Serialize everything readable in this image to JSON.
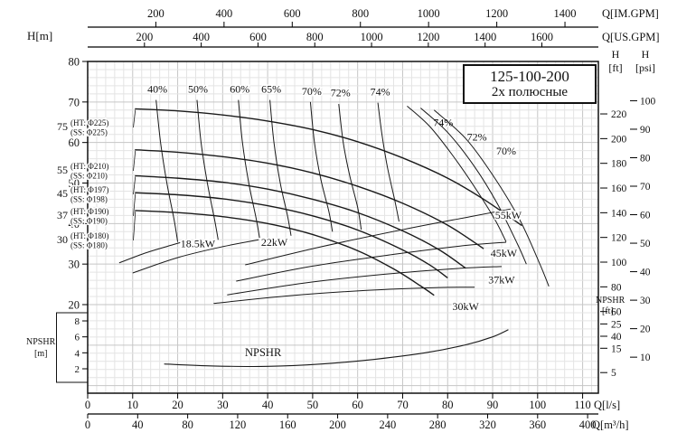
{
  "chart_data": {
    "type": "line",
    "title": "125-100-200",
    "subtitle": "2х полюсные",
    "grid": "on",
    "q_axis_range_ls": [
      0,
      113.5
    ],
    "h_axis_range_m": [
      20,
      80
    ],
    "npshr_axis_range_m": [
      2,
      8
    ],
    "axes": {
      "top_im": {
        "unit": "Q[IM.GPM]",
        "ticks": [
          200,
          400,
          600,
          800,
          1000,
          1200,
          1400
        ]
      },
      "top_us": {
        "unit": "Q[US.GPM]",
        "ticks": [
          200,
          400,
          600,
          800,
          1000,
          1200,
          1400,
          1600
        ]
      },
      "bottom_ls": {
        "unit": "Q[l/s]",
        "ticks": [
          0,
          10,
          20,
          30,
          40,
          50,
          60,
          70,
          80,
          90,
          100,
          110
        ]
      },
      "bottom_m3h": {
        "unit": "Q[m³/h]",
        "ticks": [
          0,
          40,
          80,
          120,
          160,
          200,
          240,
          280,
          320,
          360,
          400
        ]
      },
      "left_h_m": {
        "unit": "H[m]",
        "ticks": [
          80,
          70,
          60,
          50,
          40,
          30,
          20
        ]
      },
      "right_h_ft": {
        "unit_top": "H",
        "unit_bottom": "[ft]",
        "ticks": [
          220,
          200,
          180,
          160,
          140,
          120,
          100,
          80,
          60,
          40
        ]
      },
      "right_h_psi": {
        "unit_top": "H",
        "unit_bottom": "[psi]",
        "ticks": [
          100,
          90,
          80,
          70,
          60,
          50,
          40,
          30,
          20,
          10
        ]
      },
      "npshr_m": {
        "unit_top": "NPSHR",
        "unit_bottom": "[m]",
        "ticks": [
          8,
          6,
          4,
          2
        ]
      },
      "npshr_ft": {
        "unit_top": "NPSHR",
        "unit_bottom": "[ft]",
        "ticks": [
          25,
          15,
          5
        ]
      }
    },
    "head_curves": [
      {
        "motor_kw": "75",
        "impeller_ht": "(HT: Φ225)",
        "impeller_ss": "(SS: Φ225)",
        "points_q_h": [
          [
            10.5,
            68.3
          ],
          [
            20,
            67.8
          ],
          [
            30,
            66.8
          ],
          [
            40,
            65.3
          ],
          [
            50,
            63.2
          ],
          [
            60,
            60.2
          ],
          [
            70,
            56.2
          ],
          [
            80,
            51.2
          ],
          [
            88,
            46
          ],
          [
            96.5,
            39.5
          ]
        ]
      },
      {
        "motor_kw": "55",
        "impeller_ht": "(HT: Φ210)",
        "impeller_ss": "(SS: Φ210)",
        "points_q_h": [
          [
            10.5,
            58.2
          ],
          [
            20,
            57.6
          ],
          [
            30,
            56.5
          ],
          [
            40,
            54.9
          ],
          [
            50,
            52.5
          ],
          [
            60,
            49.2
          ],
          [
            70,
            45
          ],
          [
            80,
            39.6
          ],
          [
            88,
            33.8
          ]
        ]
      },
      {
        "motor_kw": "45",
        "impeller_ht": "(HT: Φ197)",
        "impeller_ss": "(SS: Φ198)",
        "points_q_h": [
          [
            10.5,
            51.8
          ],
          [
            20,
            51.2
          ],
          [
            30,
            50.2
          ],
          [
            40,
            48.5
          ],
          [
            50,
            46
          ],
          [
            60,
            42.7
          ],
          [
            70,
            38.2
          ],
          [
            78,
            33.6
          ],
          [
            84,
            29
          ]
        ]
      },
      {
        "motor_kw": "37",
        "impeller_ht": "(HT: Φ190)",
        "impeller_ss": "(SS: Φ190)",
        "points_q_h": [
          [
            10.5,
            47.6
          ],
          [
            20,
            47.1
          ],
          [
            30,
            46.1
          ],
          [
            40,
            44.4
          ],
          [
            50,
            41.9
          ],
          [
            60,
            38.4
          ],
          [
            70,
            33.5
          ],
          [
            76,
            29.8
          ],
          [
            80,
            26.6
          ]
        ]
      },
      {
        "motor_kw": "30",
        "impeller_ht": "(HT: Φ180)",
        "impeller_ss": "(SS: Φ180)",
        "points_q_h": [
          [
            10.5,
            43.2
          ],
          [
            20,
            42.7
          ],
          [
            30,
            41.7
          ],
          [
            40,
            40
          ],
          [
            50,
            37.3
          ],
          [
            60,
            33.3
          ],
          [
            68,
            28.8
          ],
          [
            74,
            24.6
          ],
          [
            77,
            22.3
          ]
        ]
      }
    ],
    "efficiency_curves": [
      {
        "label": "40%",
        "label_at_q_h": [
          15.5,
          72.3
        ],
        "points_q_h": [
          [
            15.2,
            70.5
          ],
          [
            16.2,
            60
          ],
          [
            17.6,
            50
          ],
          [
            19.2,
            41
          ],
          [
            20,
            35.5
          ]
        ]
      },
      {
        "label": "50%",
        "label_at_q_h": [
          24.5,
          72.3
        ],
        "points_q_h": [
          [
            24.3,
            70.5
          ],
          [
            25.2,
            60
          ],
          [
            26.6,
            50
          ],
          [
            28.2,
            41
          ],
          [
            29,
            36
          ]
        ]
      },
      {
        "label": "60%",
        "label_at_q_h": [
          33.8,
          72.3
        ],
        "points_q_h": [
          [
            33.5,
            70.5
          ],
          [
            34.4,
            60
          ],
          [
            35.8,
            50
          ],
          [
            37.4,
            41.5
          ],
          [
            38.2,
            36.5
          ]
        ]
      },
      {
        "label": "65%",
        "label_at_q_h": [
          40.8,
          72.3
        ],
        "points_q_h": [
          [
            40.5,
            70.5
          ],
          [
            41.4,
            60
          ],
          [
            42.8,
            50
          ],
          [
            44.4,
            42
          ],
          [
            45.2,
            37
          ]
        ]
      },
      {
        "label": "70%",
        "label_at_q_h": [
          49.8,
          71.8
        ],
        "points_q_h": [
          [
            49.5,
            70
          ],
          [
            50.4,
            60
          ],
          [
            51.8,
            51
          ],
          [
            53.6,
            43
          ],
          [
            54.4,
            38
          ]
        ]
      },
      {
        "label": "72%",
        "label_at_q_h": [
          56.2,
          71.4
        ],
        "points_q_h": [
          [
            55.8,
            69.5
          ],
          [
            56.8,
            60
          ],
          [
            58.2,
            52
          ],
          [
            60,
            44
          ],
          [
            60.8,
            38.5
          ]
        ]
      },
      {
        "label": "74%",
        "label_at_q_h": [
          65,
          71.6
        ],
        "points_q_h": [
          [
            64.5,
            69.8
          ],
          [
            65.4,
            62
          ],
          [
            66.6,
            54
          ],
          [
            68.2,
            46
          ],
          [
            69.2,
            40.5
          ]
        ]
      },
      {
        "label": "74%",
        "label_at_q_h": [
          79,
          64
        ],
        "points_q_h": [
          [
            71,
            69
          ],
          [
            76,
            64
          ],
          [
            81,
            57
          ],
          [
            86,
            49
          ],
          [
            90.5,
            41
          ],
          [
            93,
            35.5
          ]
        ]
      },
      {
        "label": "72%",
        "label_at_q_h": [
          86.5,
          60.5
        ],
        "points_q_h": [
          [
            74,
            68.5
          ],
          [
            80,
            62.5
          ],
          [
            86,
            54
          ],
          [
            91,
            45
          ],
          [
            95.5,
            35
          ],
          [
            97.5,
            30
          ]
        ]
      },
      {
        "label": "70%",
        "label_at_q_h": [
          93,
          57
        ],
        "points_q_h": [
          [
            77,
            68
          ],
          [
            84,
            61
          ],
          [
            90,
            52
          ],
          [
            96,
            41
          ],
          [
            100.5,
            30
          ],
          [
            102.5,
            24.5
          ]
        ]
      }
    ],
    "power_curves": [
      {
        "label": "18.5kW",
        "label_at_q_h": [
          24.5,
          34.2
        ],
        "points_q_h": [
          [
            7,
            30.3
          ],
          [
            13,
            32.8
          ],
          [
            19,
            34.8
          ],
          [
            21.5,
            35.6
          ]
        ]
      },
      {
        "label": "22kW",
        "label_at_q_h": [
          41.5,
          34.5
        ],
        "points_q_h": [
          [
            10,
            27.8
          ],
          [
            20,
            31.6
          ],
          [
            30,
            34.3
          ],
          [
            38,
            36
          ]
        ]
      },
      {
        "label": "30kW",
        "label_at_q_h": [
          84,
          18.7
        ],
        "points_q_h": [
          [
            28,
            20.3
          ],
          [
            45,
            22.2
          ],
          [
            62,
            23.5
          ],
          [
            78,
            24.2
          ],
          [
            86,
            24.3
          ]
        ]
      },
      {
        "label": "37kW",
        "label_at_q_h": [
          92,
          25.2
        ],
        "points_q_h": [
          [
            31,
            22.4
          ],
          [
            48,
            25.3
          ],
          [
            66,
            27.5
          ],
          [
            82,
            28.9
          ],
          [
            92,
            29.4
          ]
        ]
      },
      {
        "label": "45kW",
        "label_at_q_h": [
          92.5,
          31.8
        ],
        "points_q_h": [
          [
            33,
            25.8
          ],
          [
            50,
            29.5
          ],
          [
            68,
            32.4
          ],
          [
            84,
            34.6
          ],
          [
            93,
            35.4
          ]
        ]
      },
      {
        "label": "55kW",
        "label_at_q_h": [
          93.5,
          41.2
        ],
        "points_q_h": [
          [
            35,
            29.8
          ],
          [
            52,
            34.3
          ],
          [
            70,
            38.5
          ],
          [
            85,
            41.7
          ],
          [
            94,
            43.6
          ]
        ]
      }
    ],
    "npshr_curve": {
      "label": "NPSHR",
      "label_at_q_npshr": [
        39,
        3.6
      ],
      "points_q_npshr": [
        [
          17,
          2.6
        ],
        [
          28,
          2.35
        ],
        [
          40,
          2.3
        ],
        [
          52,
          2.6
        ],
        [
          64,
          3.2
        ],
        [
          75,
          4.0
        ],
        [
          84,
          5.0
        ],
        [
          90,
          6.0
        ],
        [
          93.5,
          6.9
        ]
      ]
    }
  }
}
